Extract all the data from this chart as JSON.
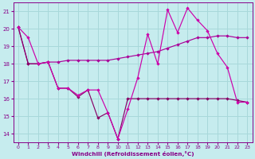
{
  "xlabel": "Windchill (Refroidissement éolien,°C)",
  "background_color": "#c6ecee",
  "grid_color": "#a8d8da",
  "line_color1": "#cc00aa",
  "line_color2": "#880066",
  "line_color3": "#aa0099",
  "xlim": [
    -0.5,
    23.5
  ],
  "ylim": [
    13.5,
    21.5
  ],
  "yticks": [
    14,
    15,
    16,
    17,
    18,
    19,
    20,
    21
  ],
  "xticks": [
    0,
    1,
    2,
    3,
    4,
    5,
    6,
    7,
    8,
    9,
    10,
    11,
    12,
    13,
    14,
    15,
    16,
    17,
    18,
    19,
    20,
    21,
    22,
    23
  ],
  "series1_x": [
    0,
    1,
    2,
    3,
    4,
    5,
    6,
    7,
    8,
    9,
    10,
    11,
    12,
    13,
    14,
    15,
    16,
    17,
    18,
    19,
    20,
    21,
    22,
    23
  ],
  "series1_y": [
    20.1,
    19.5,
    18.0,
    18.1,
    16.6,
    16.6,
    16.2,
    16.5,
    16.5,
    15.2,
    13.7,
    15.4,
    17.2,
    19.7,
    18.0,
    21.1,
    19.8,
    21.2,
    20.5,
    19.9,
    18.6,
    17.8,
    15.8,
    15.8
  ],
  "series2_x": [
    0,
    1,
    2,
    3,
    4,
    5,
    6,
    7,
    8,
    9,
    10,
    11,
    12,
    13,
    14,
    15,
    16,
    17,
    18,
    19,
    20,
    21,
    22,
    23
  ],
  "series2_y": [
    20.1,
    18.0,
    18.0,
    18.1,
    16.6,
    16.6,
    16.1,
    16.5,
    14.9,
    15.2,
    13.7,
    16.0,
    16.0,
    16.0,
    16.0,
    16.0,
    16.0,
    16.0,
    16.0,
    16.0,
    16.0,
    16.0,
    15.9,
    15.8
  ],
  "series3_x": [
    0,
    1,
    2,
    3,
    4,
    5,
    6,
    7,
    8,
    9,
    10,
    11,
    12,
    13,
    14,
    15,
    16,
    17,
    18,
    19,
    20,
    21,
    22,
    23
  ],
  "series3_y": [
    20.1,
    18.0,
    18.0,
    18.1,
    18.1,
    18.2,
    18.2,
    18.2,
    18.2,
    18.2,
    18.3,
    18.4,
    18.5,
    18.6,
    18.7,
    18.9,
    19.1,
    19.3,
    19.5,
    19.5,
    19.6,
    19.6,
    19.5,
    19.5
  ]
}
